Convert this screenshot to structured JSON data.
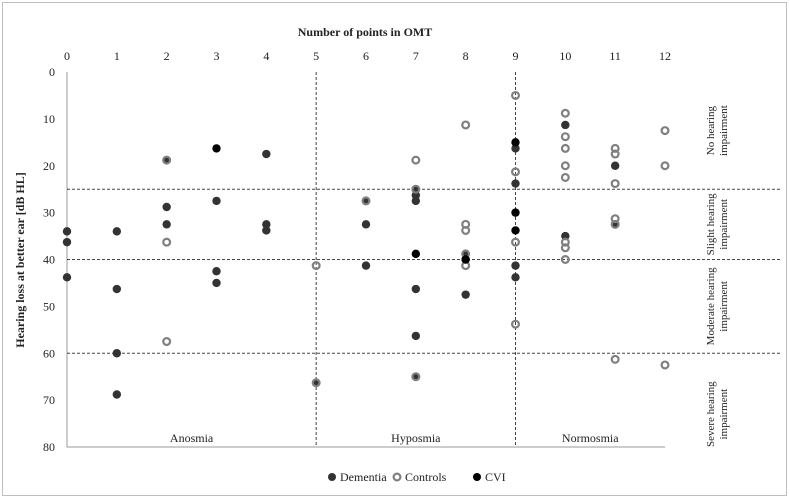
{
  "chart_data": {
    "type": "scatter",
    "title": "Number of points in OMT",
    "xlabel": "Number of points in OMT",
    "ylabel": "Hearing loss at better ear [dB HL]",
    "xlim": [
      0,
      12
    ],
    "ylim": [
      0,
      80
    ],
    "y_inverted": true,
    "x_axis_position": "top",
    "x_ticks": [
      "0",
      "1",
      "2",
      "3",
      "4",
      "5",
      "6",
      "7",
      "8",
      "9",
      "10",
      "11",
      "12"
    ],
    "y_ticks": [
      "0",
      "10",
      "20",
      "30",
      "40",
      "50",
      "60",
      "70",
      "80"
    ],
    "vertical_dividers": [
      5,
      9
    ],
    "horizontal_thresholds": [
      25,
      40,
      60
    ],
    "region_labels": [
      "Anosmia",
      "Hyposmia",
      "Normosmia"
    ],
    "severity_labels": [
      {
        "line1": "No hearing",
        "line2": "impairment",
        "y": 12.5
      },
      {
        "line1": "Slight hearing",
        "line2": "impairment",
        "y": 32.5
      },
      {
        "line1": "Moderate hearing",
        "line2": "impairment",
        "y": 50
      },
      {
        "line1": "Severe hearing",
        "line2": "impairment",
        "y": 73
      }
    ],
    "legend_position": "bottom",
    "series": [
      {
        "name": "Dementia",
        "color": "#333333",
        "marker": "filled-circle",
        "points": [
          [
            0,
            34
          ],
          [
            0,
            36.3
          ],
          [
            0,
            43.8
          ],
          [
            1,
            34
          ],
          [
            1,
            46.3
          ],
          [
            1,
            60
          ],
          [
            1,
            68.8
          ],
          [
            2,
            18.8
          ],
          [
            2,
            28.8
          ],
          [
            2,
            32.5
          ],
          [
            3,
            27.5
          ],
          [
            3,
            42.5
          ],
          [
            3,
            45
          ],
          [
            4,
            17.5
          ],
          [
            4,
            32.5
          ],
          [
            4,
            33.8
          ],
          [
            5,
            66.3
          ],
          [
            6,
            27.5
          ],
          [
            6,
            32.5
          ],
          [
            6,
            41.3
          ],
          [
            7,
            25
          ],
          [
            7,
            26.3
          ],
          [
            7,
            27.5
          ],
          [
            7,
            46.3
          ],
          [
            7,
            56.3
          ],
          [
            7,
            65
          ],
          [
            8,
            38.8
          ],
          [
            8,
            40
          ],
          [
            8,
            47.5
          ],
          [
            9,
            16.3
          ],
          [
            9,
            23.8
          ],
          [
            9,
            41.3
          ],
          [
            9,
            43.8
          ],
          [
            10,
            35
          ],
          [
            10,
            11.3
          ],
          [
            11,
            20
          ],
          [
            11,
            32.5
          ]
        ]
      },
      {
        "name": "Controls",
        "color": "#7f7f7f",
        "marker": "open-circle",
        "points": [
          [
            2,
            18.8
          ],
          [
            2,
            36.3
          ],
          [
            2,
            57.5
          ],
          [
            5,
            41.3
          ],
          [
            5,
            66.3
          ],
          [
            6,
            27.5
          ],
          [
            7,
            18.8
          ],
          [
            7,
            25
          ],
          [
            7,
            65
          ],
          [
            8,
            11.3
          ],
          [
            8,
            32.5
          ],
          [
            8,
            33.8
          ],
          [
            8,
            38.8
          ],
          [
            8,
            41.3
          ],
          [
            9,
            5
          ],
          [
            9,
            21.3
          ],
          [
            9,
            36.3
          ],
          [
            9,
            53.8
          ],
          [
            10,
            8.8
          ],
          [
            10,
            13.8
          ],
          [
            10,
            16.3
          ],
          [
            10,
            20
          ],
          [
            10,
            22.5
          ],
          [
            10,
            36.3
          ],
          [
            10,
            37.5
          ],
          [
            10,
            40
          ],
          [
            11,
            16.3
          ],
          [
            11,
            17.5
          ],
          [
            11,
            23.8
          ],
          [
            11,
            31.3
          ],
          [
            11,
            32.5
          ],
          [
            11,
            61.3
          ],
          [
            12,
            12.5
          ],
          [
            12,
            20
          ],
          [
            12,
            62.5
          ]
        ]
      },
      {
        "name": "CVI",
        "color": "#000000",
        "marker": "filled-circle",
        "points": [
          [
            3,
            16.3
          ],
          [
            7,
            38.8
          ],
          [
            8,
            40
          ],
          [
            9,
            15
          ],
          [
            9,
            30
          ],
          [
            9,
            33.8
          ]
        ]
      }
    ]
  }
}
